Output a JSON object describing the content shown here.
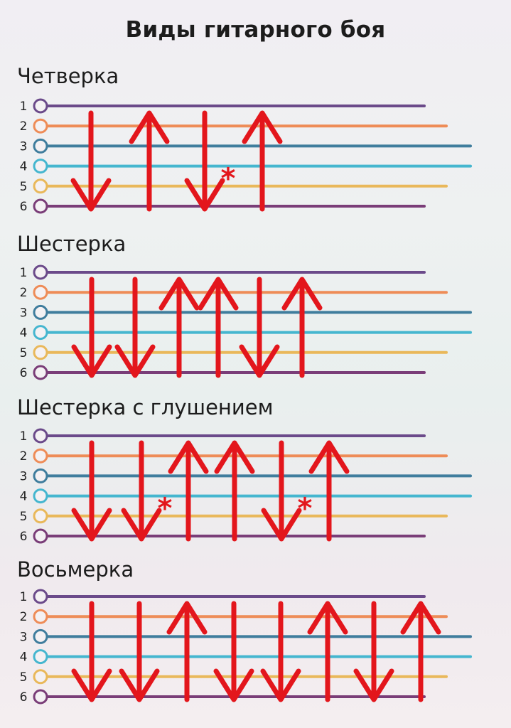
{
  "title": "Виды гитарного боя",
  "string_colors": [
    "#6b4a8a",
    "#ee8c57",
    "#3f7d9d",
    "#45b6cf",
    "#e9b85a",
    "#7a3d78"
  ],
  "arrow_color": "#e3161c",
  "sections": [
    {
      "name": "Четверка",
      "strings": [
        "1",
        "2",
        "3",
        "4",
        "5",
        "6"
      ],
      "pattern": [
        {
          "dir": "down",
          "muted": false
        },
        {
          "dir": "up",
          "muted": false
        },
        {
          "dir": "down",
          "muted": true
        },
        {
          "dir": "up",
          "muted": false
        }
      ]
    },
    {
      "name": "Шестерка",
      "strings": [
        "1",
        "2",
        "3",
        "4",
        "5",
        "6"
      ],
      "pattern": [
        {
          "dir": "down",
          "muted": false
        },
        {
          "dir": "down",
          "muted": false
        },
        {
          "dir": "up",
          "muted": false
        },
        {
          "dir": "up",
          "muted": false
        },
        {
          "dir": "down",
          "muted": false
        },
        {
          "dir": "up",
          "muted": false
        }
      ]
    },
    {
      "name": "Шестерка с глушением",
      "strings": [
        "1",
        "2",
        "3",
        "4",
        "5",
        "6"
      ],
      "pattern": [
        {
          "dir": "down",
          "muted": false
        },
        {
          "dir": "down",
          "muted": true
        },
        {
          "dir": "up",
          "muted": false
        },
        {
          "dir": "up",
          "muted": false
        },
        {
          "dir": "down",
          "muted": true
        },
        {
          "dir": "up",
          "muted": false
        }
      ]
    },
    {
      "name": "Восьмерка",
      "strings": [
        "1",
        "2",
        "3",
        "4",
        "5",
        "6"
      ],
      "pattern": [
        {
          "dir": "down",
          "muted": false
        },
        {
          "dir": "down",
          "muted": false
        },
        {
          "dir": "up",
          "muted": false
        },
        {
          "dir": "down",
          "muted": false
        },
        {
          "dir": "down",
          "muted": false
        },
        {
          "dir": "up",
          "muted": false
        },
        {
          "dir": "down",
          "muted": false
        },
        {
          "dir": "up",
          "muted": false
        }
      ]
    }
  ]
}
